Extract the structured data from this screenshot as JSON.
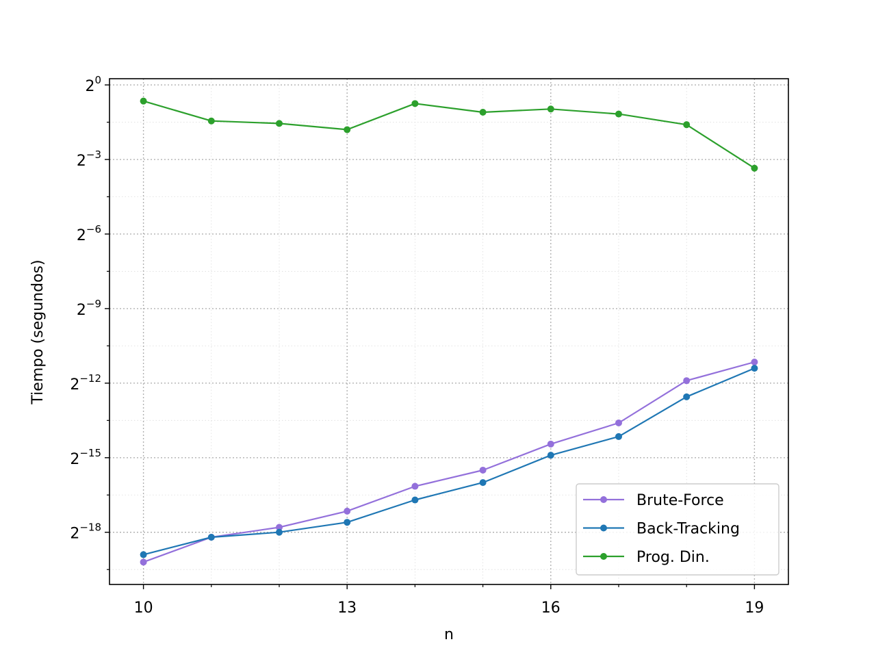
{
  "chart_data": {
    "type": "line",
    "title": "",
    "xlabel": "n",
    "ylabel": "Tiempo (segundos)",
    "x": [
      10,
      11,
      12,
      13,
      14,
      15,
      16,
      17,
      18,
      19
    ],
    "xlim": [
      9.5,
      19.5
    ],
    "x_ticks": [
      10,
      13,
      16,
      19
    ],
    "x_tick_labels": [
      "10",
      "13",
      "16",
      "19"
    ],
    "x_minor_ticks": [
      11,
      12,
      14,
      15,
      17,
      18
    ],
    "y_scale": "log2",
    "ylim_exponent": [
      -20.1,
      0.25
    ],
    "y_ticks_exponent": [
      0,
      -3,
      -6,
      -9,
      -12,
      -15,
      -18
    ],
    "y_tick_labels": [
      {
        "base": "2",
        "exp": "0"
      },
      {
        "base": "2",
        "exp": "−3"
      },
      {
        "base": "2",
        "exp": "−6"
      },
      {
        "base": "2",
        "exp": "−9"
      },
      {
        "base": "2",
        "exp": "−12"
      },
      {
        "base": "2",
        "exp": "−15"
      },
      {
        "base": "2",
        "exp": "−18"
      }
    ],
    "y_minor_ticks_exponent": [
      -1.5,
      -4.5,
      -7.5,
      -10.5,
      -13.5,
      -16.5,
      -19.5
    ],
    "grid": true,
    "legend_position": "bottom-right",
    "series": [
      {
        "name": "Brute-Force",
        "color": "#9370db",
        "y_exponent": [
          -19.2,
          -18.2,
          -17.8,
          -17.15,
          -16.15,
          -15.5,
          -14.45,
          -13.6,
          -11.9,
          -11.15
        ]
      },
      {
        "name": "Back-Tracking",
        "color": "#1f77b4",
        "y_exponent": [
          -18.9,
          -18.2,
          -18.0,
          -17.6,
          -16.7,
          -16.0,
          -14.9,
          -14.15,
          -12.55,
          -11.4
        ]
      },
      {
        "name": "Prog. Din.",
        "color": "#2ca02c",
        "y_exponent": [
          -0.65,
          -1.45,
          -1.55,
          -1.8,
          -0.75,
          -1.1,
          -0.97,
          -1.17,
          -1.6,
          -3.35
        ]
      }
    ]
  }
}
